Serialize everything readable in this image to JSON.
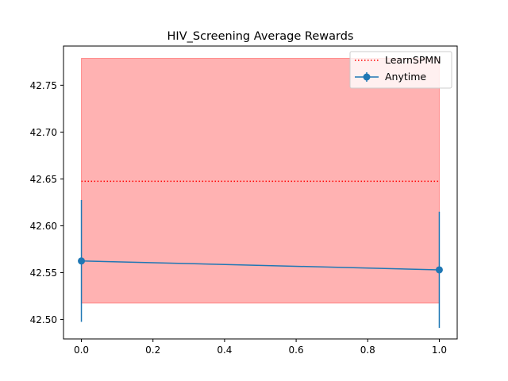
{
  "chart_data": {
    "type": "line",
    "title": "HIV_Screening Average Rewards",
    "xlabel": "",
    "ylabel": "",
    "xlim": [
      -0.05,
      1.05
    ],
    "ylim": [
      42.4793,
      42.7918
    ],
    "x_ticks": [
      0.0,
      0.2,
      0.4,
      0.6,
      0.8,
      1.0
    ],
    "x_tick_labels": [
      "0.0",
      "0.2",
      "0.4",
      "0.6",
      "0.8",
      "1.0"
    ],
    "y_ticks": [
      42.5,
      42.55,
      42.6,
      42.65,
      42.7,
      42.75
    ],
    "y_tick_labels": [
      "42.50",
      "42.55",
      "42.60",
      "42.65",
      "42.70",
      "42.75"
    ],
    "grid": false,
    "legend_position": "top-right",
    "series": [
      {
        "name": "Anytime",
        "kind": "errorbar",
        "color": "#1f77b4",
        "x": [
          0.0,
          1.0
        ],
        "y": [
          42.5625,
          42.553
        ],
        "err": [
          0.065,
          0.062
        ]
      }
    ],
    "reference": {
      "name": "LearnSPMN",
      "kind": "hline",
      "style": "dotted",
      "color": "#ff0000",
      "y": 42.6475,
      "band": [
        42.5175,
        42.7787
      ],
      "band_color": "#ff0000",
      "band_opacity": 0.3,
      "x_range": [
        0.0,
        1.0
      ]
    }
  }
}
